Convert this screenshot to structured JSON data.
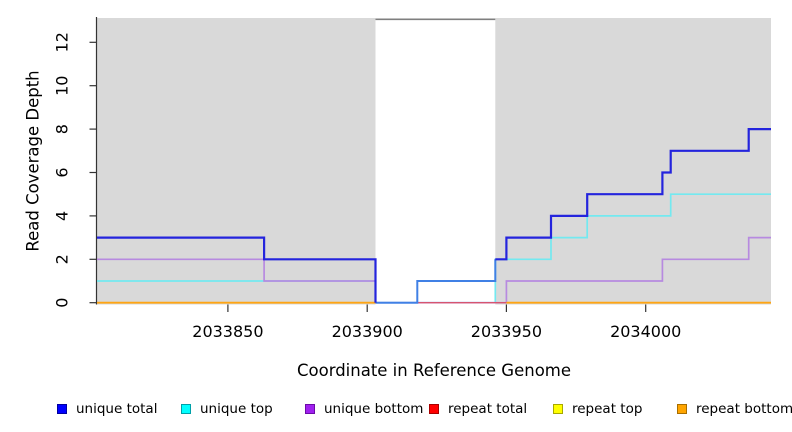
{
  "chart_data": {
    "type": "line",
    "subtype": "step-coverage-plot",
    "title": "",
    "xlabel": "Coordinate in Reference Genome",
    "ylabel": "Read Coverage Depth",
    "xlim": [
      2033803,
      2034045
    ],
    "ylim": [
      0,
      13.2
    ],
    "grid": false,
    "ticks": {
      "x": {
        "values": [
          2033850,
          2033900,
          2033950,
          2034000
        ],
        "labels": [
          "2033850",
          "2033900",
          "2033950",
          "2034000"
        ]
      },
      "y": {
        "values": [
          0,
          2,
          4,
          6,
          8,
          10,
          12
        ],
        "labels": [
          "0",
          "2",
          "4",
          "6",
          "8",
          "10",
          "12"
        ]
      }
    },
    "background": {
      "plot_fill": "#d9d9d9",
      "gap_region": {
        "x_start": 2033903,
        "x_end": 2033946,
        "fill": "#ffffff",
        "top_border": "#7f7f7f"
      }
    },
    "series": [
      {
        "name": "unique total",
        "color": "#0000ff",
        "steps": [
          [
            2033803,
            3
          ],
          [
            2033863,
            2
          ],
          [
            2033903,
            0
          ],
          [
            2033918,
            1
          ],
          [
            2033946,
            2
          ],
          [
            2033950,
            3
          ],
          [
            2033966,
            4
          ],
          [
            2033979,
            5
          ],
          [
            2034006,
            6
          ],
          [
            2034009,
            7
          ],
          [
            2034037,
            8
          ],
          [
            2034045,
            8
          ]
        ]
      },
      {
        "name": "unique top",
        "color": "#00ffff",
        "steps": [
          [
            2033803,
            1
          ],
          [
            2033903,
            0
          ],
          [
            2033946,
            2
          ],
          [
            2033966,
            3
          ],
          [
            2033979,
            4
          ],
          [
            2034009,
            5
          ],
          [
            2034045,
            5
          ]
        ]
      },
      {
        "name": "unique bottom",
        "color": "#a020f0",
        "steps": [
          [
            2033803,
            2
          ],
          [
            2033863,
            1
          ],
          [
            2033903,
            0
          ],
          [
            2033950,
            1
          ],
          [
            2034006,
            2
          ],
          [
            2034037,
            3
          ],
          [
            2034045,
            3
          ]
        ]
      },
      {
        "name": "repeat total",
        "color": "#ff0000",
        "steps": [
          [
            2033803,
            0
          ],
          [
            2034045,
            0
          ]
        ]
      },
      {
        "name": "repeat top",
        "color": "#ffff00",
        "steps": [
          [
            2033803,
            0
          ],
          [
            2034045,
            0
          ]
        ]
      },
      {
        "name": "repeat bottom",
        "color": "#ffa500",
        "steps": [
          [
            2033803,
            0
          ],
          [
            2034045,
            0
          ]
        ]
      }
    ],
    "paths": [
      {
        "name": "repeat-top-line",
        "color": "#f0f000",
        "width": 1.2,
        "segments": [
          [
            [
              2033803,
              0
            ],
            [
              2033903,
              0
            ]
          ],
          [
            [
              2033950,
              0
            ],
            [
              2034045,
              0
            ]
          ]
        ]
      },
      {
        "name": "unique-top-line",
        "color": "#73e9f0",
        "width": 1.7,
        "segments": [
          [
            [
              2033803,
              1
            ],
            [
              2033903,
              1
            ],
            [
              2033903,
              0
            ],
            [
              2033946,
              0
            ],
            [
              2033946,
              2
            ],
            [
              2033966,
              2
            ],
            [
              2033966,
              3
            ],
            [
              2033979,
              3
            ],
            [
              2033979,
              4
            ],
            [
              2034009,
              4
            ],
            [
              2034009,
              5
            ],
            [
              2034045,
              5
            ]
          ]
        ]
      },
      {
        "name": "unique-bottom-line",
        "color": "#b78ae0",
        "width": 1.7,
        "segments": [
          [
            [
              2033803,
              2
            ],
            [
              2033863,
              2
            ],
            [
              2033863,
              1
            ],
            [
              2033903,
              1
            ],
            [
              2033903,
              0
            ],
            [
              2033950,
              0
            ],
            [
              2033950,
              1
            ],
            [
              2034006,
              1
            ],
            [
              2034006,
              2
            ],
            [
              2034037,
              2
            ],
            [
              2034037,
              3
            ],
            [
              2034045,
              3
            ]
          ]
        ]
      },
      {
        "name": "repeat-total-line",
        "color": "#d65570",
        "width": 1.3,
        "segments": [
          [
            [
              2033903,
              0
            ],
            [
              2033950,
              0
            ]
          ]
        ]
      },
      {
        "name": "repeat-bottom-line",
        "color": "#ffa513",
        "width": 1.9,
        "segments": [
          [
            [
              2033803,
              0
            ],
            [
              2033903,
              0
            ]
          ],
          [
            [
              2033950,
              0
            ],
            [
              2034045,
              0
            ]
          ]
        ]
      },
      {
        "name": "unique-total-line-gap-segment",
        "color": "#4080e5",
        "width": 2.0,
        "segments": [
          [
            [
              2033903,
              0
            ],
            [
              2033918,
              0
            ],
            [
              2033918,
              1
            ],
            [
              2033946,
              1
            ],
            [
              2033946,
              2
            ]
          ]
        ]
      },
      {
        "name": "unique-total-line",
        "color": "#2424dd",
        "width": 2.2,
        "segments": [
          [
            [
              2033803,
              3
            ],
            [
              2033863,
              3
            ],
            [
              2033863,
              2
            ],
            [
              2033903,
              2
            ],
            [
              2033903,
              0
            ]
          ],
          [
            [
              2033946,
              2
            ],
            [
              2033950,
              2
            ],
            [
              2033950,
              3
            ],
            [
              2033966,
              3
            ],
            [
              2033966,
              4
            ],
            [
              2033979,
              4
            ],
            [
              2033979,
              5
            ],
            [
              2034006,
              5
            ],
            [
              2034006,
              6
            ],
            [
              2034009,
              6
            ],
            [
              2034009,
              7
            ],
            [
              2034037,
              7
            ],
            [
              2034037,
              8
            ],
            [
              2034045,
              8
            ]
          ]
        ]
      }
    ],
    "legend": {
      "position": "bottom",
      "items": [
        {
          "label": "unique total",
          "fill": "#0000ff",
          "border": "#0000a0"
        },
        {
          "label": "unique top",
          "fill": "#00ffff",
          "border": "#00a0a8"
        },
        {
          "label": "unique bottom",
          "fill": "#a020f0",
          "border": "#6c0aa8"
        },
        {
          "label": "repeat total",
          "fill": "#ff0000",
          "border": "#a80000"
        },
        {
          "label": "repeat top",
          "fill": "#ffff00",
          "border": "#a8a800"
        },
        {
          "label": "repeat bottom",
          "fill": "#ffa500",
          "border": "#a86e00"
        }
      ]
    }
  }
}
